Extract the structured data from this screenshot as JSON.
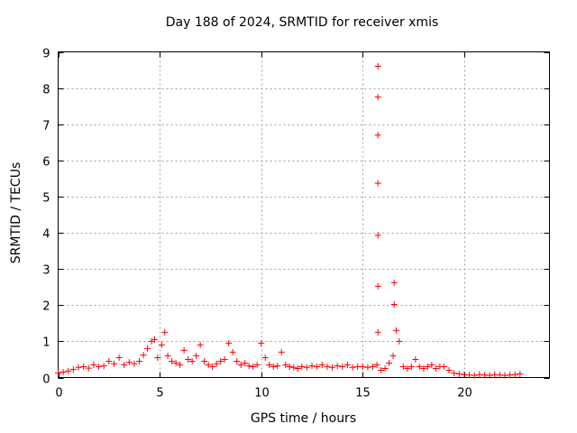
{
  "chart_data": {
    "type": "scatter",
    "title": "Day 188 of 2024, SRMTID for receiver xmis",
    "xlabel": "GPS time / hours",
    "ylabel": "SRMTID / TECUs",
    "xlim": [
      0,
      24.2
    ],
    "ylim": [
      0,
      9
    ],
    "xticks": [
      0,
      5,
      10,
      15,
      20
    ],
    "xtick_labels": [
      "0",
      "5",
      "10",
      "15",
      "20"
    ],
    "yticks": [
      0,
      1,
      2,
      3,
      4,
      5,
      6,
      7,
      8,
      9
    ],
    "ytick_labels": [
      "0",
      "1",
      "2",
      "3",
      "4",
      "5",
      "6",
      "7",
      "8",
      "9"
    ],
    "grid": true,
    "marker": "+",
    "color": "#ff0000",
    "series": [
      {
        "name": "SRMTID",
        "x": [
          0.0,
          0.25,
          0.5,
          0.75,
          1.0,
          1.25,
          1.5,
          1.75,
          2.0,
          2.25,
          2.5,
          2.75,
          3.0,
          3.25,
          3.5,
          3.75,
          4.0,
          4.2,
          4.4,
          4.6,
          4.75,
          4.9,
          5.1,
          5.25,
          5.4,
          5.6,
          5.8,
          6.0,
          6.2,
          6.4,
          6.6,
          6.8,
          7.0,
          7.2,
          7.4,
          7.6,
          7.8,
          8.0,
          8.2,
          8.4,
          8.6,
          8.8,
          9.0,
          9.2,
          9.4,
          9.6,
          9.8,
          10.0,
          10.2,
          10.4,
          10.6,
          10.8,
          11.0,
          11.2,
          11.4,
          11.6,
          11.8,
          12.0,
          12.25,
          12.5,
          12.75,
          13.0,
          13.25,
          13.5,
          13.75,
          14.0,
          14.25,
          14.5,
          14.75,
          15.0,
          15.25,
          15.5,
          15.7,
          15.9,
          16.1,
          16.3,
          16.5,
          16.65,
          16.8,
          17.0,
          17.2,
          17.4,
          17.6,
          17.8,
          18.0,
          18.2,
          18.4,
          18.6,
          18.8,
          19.0,
          19.25,
          19.5,
          19.75,
          20.0,
          20.25,
          20.5,
          20.75,
          21.0,
          21.25,
          21.5,
          21.75,
          22.0,
          22.25,
          22.5,
          22.75,
          15.75,
          15.75,
          15.75,
          15.75,
          15.75,
          15.75,
          15.75,
          16.55,
          16.55
        ],
        "y": [
          0.12,
          0.15,
          0.18,
          0.22,
          0.28,
          0.3,
          0.26,
          0.35,
          0.3,
          0.32,
          0.45,
          0.38,
          0.55,
          0.35,
          0.42,
          0.38,
          0.45,
          0.62,
          0.8,
          1.0,
          1.05,
          0.55,
          0.9,
          1.25,
          0.6,
          0.45,
          0.4,
          0.35,
          0.75,
          0.5,
          0.45,
          0.6,
          0.9,
          0.45,
          0.35,
          0.3,
          0.38,
          0.45,
          0.5,
          0.95,
          0.7,
          0.45,
          0.35,
          0.4,
          0.32,
          0.3,
          0.35,
          0.95,
          0.55,
          0.35,
          0.3,
          0.32,
          0.7,
          0.35,
          0.3,
          0.28,
          0.25,
          0.3,
          0.28,
          0.32,
          0.3,
          0.35,
          0.3,
          0.28,
          0.32,
          0.3,
          0.35,
          0.28,
          0.3,
          0.3,
          0.28,
          0.3,
          0.35,
          0.2,
          0.25,
          0.4,
          0.6,
          1.3,
          1.0,
          0.3,
          0.25,
          0.3,
          0.5,
          0.3,
          0.25,
          0.3,
          0.35,
          0.25,
          0.3,
          0.3,
          0.2,
          0.12,
          0.1,
          0.08,
          0.07,
          0.06,
          0.08,
          0.07,
          0.06,
          0.08,
          0.07,
          0.06,
          0.07,
          0.08,
          0.1,
          8.6,
          7.75,
          6.7,
          5.37,
          3.93,
          2.52,
          1.25,
          2.62,
          2.02
        ]
      }
    ]
  }
}
